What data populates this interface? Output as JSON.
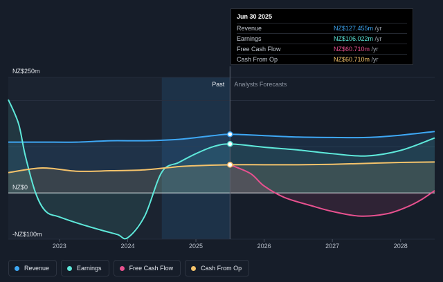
{
  "tooltip": {
    "date": "Jun 30 2025",
    "rows": [
      {
        "name": "Revenue",
        "value": "NZ$127.455m",
        "unit": " /yr",
        "color": "#3ea8f5"
      },
      {
        "name": "Earnings",
        "value": "NZ$106.022m",
        "unit": " /yr",
        "color": "#5ee8da"
      },
      {
        "name": "Free Cash Flow",
        "value": "NZ$60.710m",
        "unit": " /yr",
        "color": "#e8518f"
      },
      {
        "name": "Cash From Op",
        "value": "NZ$60.710m",
        "unit": " /yr",
        "color": "#f5c36b"
      }
    ]
  },
  "legend": [
    {
      "label": "Revenue",
      "color": "#3ea8f5"
    },
    {
      "label": "Earnings",
      "color": "#5ee8da"
    },
    {
      "label": "Free Cash Flow",
      "color": "#e8518f"
    },
    {
      "label": "Cash From Op",
      "color": "#f5c36b"
    }
  ],
  "chart_data": {
    "type": "line",
    "title": "",
    "ylim": [
      -100,
      250
    ],
    "y_tick_labels": [
      {
        "value": 250,
        "label": "NZ$250m"
      },
      {
        "value": 0,
        "label": "NZ$0"
      },
      {
        "value": -100,
        "label": "-NZ$100m"
      }
    ],
    "xlim": [
      2022.25,
      2028.5
    ],
    "x_ticks": [
      2023,
      2024,
      2025,
      2026,
      2027,
      2028
    ],
    "x_tick_labels": [
      "2023",
      "2024",
      "2025",
      "2026",
      "2027",
      "2028"
    ],
    "region_labels": {
      "past": "Past",
      "forecast": "Analysts Forecasts"
    },
    "past_divider_x": 2025.5,
    "highlight_start_x": 2024.5,
    "marker_x": 2025.5,
    "grid": true,
    "series": [
      {
        "name": "Revenue",
        "color": "#3ea8f5",
        "points": [
          [
            2022.25,
            110
          ],
          [
            2022.75,
            110
          ],
          [
            2023.25,
            110
          ],
          [
            2023.75,
            113
          ],
          [
            2024.25,
            113
          ],
          [
            2024.75,
            116
          ],
          [
            2025.25,
            124
          ],
          [
            2025.5,
            127
          ],
          [
            2026.0,
            124
          ],
          [
            2026.5,
            121
          ],
          [
            2027.0,
            120
          ],
          [
            2027.5,
            120
          ],
          [
            2028.0,
            125
          ],
          [
            2028.5,
            133
          ]
        ]
      },
      {
        "name": "Earnings",
        "color": "#5ee8da",
        "points": [
          [
            2022.25,
            202
          ],
          [
            2022.4,
            150
          ],
          [
            2022.5,
            80
          ],
          [
            2022.65,
            0
          ],
          [
            2022.8,
            -40
          ],
          [
            2023.0,
            -52
          ],
          [
            2023.3,
            -67
          ],
          [
            2023.6,
            -80
          ],
          [
            2023.85,
            -90
          ],
          [
            2024.0,
            -97
          ],
          [
            2024.25,
            -50
          ],
          [
            2024.5,
            45
          ],
          [
            2024.75,
            66
          ],
          [
            2025.0,
            85
          ],
          [
            2025.25,
            100
          ],
          [
            2025.5,
            106
          ],
          [
            2026.0,
            99
          ],
          [
            2026.5,
            93
          ],
          [
            2027.0,
            85
          ],
          [
            2027.5,
            80
          ],
          [
            2028.0,
            92
          ],
          [
            2028.5,
            119
          ]
        ]
      },
      {
        "name": "Free Cash Flow",
        "color": "#e8518f",
        "points": [
          [
            2025.5,
            61
          ],
          [
            2025.8,
            42
          ],
          [
            2026.0,
            15
          ],
          [
            2026.3,
            -10
          ],
          [
            2026.7,
            -28
          ],
          [
            2027.0,
            -40
          ],
          [
            2027.4,
            -50
          ],
          [
            2027.8,
            -45
          ],
          [
            2028.1,
            -30
          ],
          [
            2028.3,
            -15
          ],
          [
            2028.5,
            5
          ]
        ]
      },
      {
        "name": "Cash From Op",
        "color": "#f5c36b",
        "points": [
          [
            2022.25,
            44
          ],
          [
            2022.75,
            54
          ],
          [
            2023.25,
            47
          ],
          [
            2023.75,
            48
          ],
          [
            2024.25,
            50
          ],
          [
            2024.75,
            57
          ],
          [
            2025.0,
            59
          ],
          [
            2025.5,
            61
          ],
          [
            2026.0,
            61
          ],
          [
            2026.5,
            61
          ],
          [
            2027.0,
            62
          ],
          [
            2027.5,
            64
          ],
          [
            2028.0,
            66
          ],
          [
            2028.5,
            67
          ]
        ]
      }
    ]
  }
}
